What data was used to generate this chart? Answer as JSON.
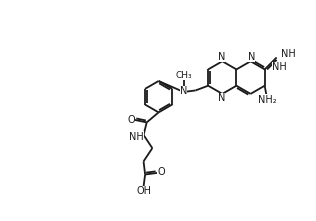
{
  "bg_color": "#ffffff",
  "line_color": "#1a1a1a",
  "line_width": 1.3,
  "font_size": 7.0,
  "fig_width": 3.16,
  "fig_height": 2.21,
  "xlim": [
    0,
    10
  ],
  "ylim": [
    0,
    7
  ]
}
